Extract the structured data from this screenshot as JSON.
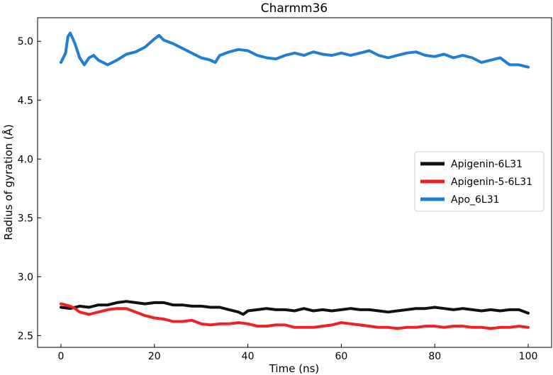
{
  "chart_data": {
    "type": "line",
    "title": "Charmm36",
    "xlabel": "Time (ns)",
    "ylabel": "Radius of gyration (Å)",
    "xlim": [
      -5,
      105
    ],
    "ylim": [
      2.4,
      5.2
    ],
    "xticks": [
      0,
      20,
      40,
      60,
      80,
      100
    ],
    "xtick_labels": [
      "0",
      "20",
      "40",
      "60",
      "80",
      "100"
    ],
    "yticks": [
      2.5,
      3.0,
      3.5,
      4.0,
      4.5,
      5.0
    ],
    "ytick_labels": [
      "2.5",
      "3.0",
      "3.5",
      "4.0",
      "4.5",
      "5.0"
    ],
    "grid": false,
    "legend_position": "right",
    "series": [
      {
        "name": "Apigenin-6L31",
        "color": "#111111",
        "x": [
          0,
          2,
          4,
          6,
          8,
          10,
          12,
          14,
          16,
          18,
          20,
          22,
          24,
          26,
          28,
          30,
          32,
          34,
          36,
          38,
          39,
          40,
          42,
          44,
          46,
          48,
          50,
          52,
          54,
          56,
          58,
          60,
          62,
          64,
          66,
          68,
          70,
          72,
          74,
          76,
          78,
          80,
          82,
          84,
          86,
          88,
          90,
          92,
          94,
          96,
          98,
          100
        ],
        "y": [
          2.74,
          2.73,
          2.75,
          2.74,
          2.76,
          2.76,
          2.78,
          2.79,
          2.78,
          2.77,
          2.78,
          2.78,
          2.76,
          2.76,
          2.75,
          2.75,
          2.74,
          2.74,
          2.72,
          2.7,
          2.68,
          2.71,
          2.72,
          2.73,
          2.72,
          2.72,
          2.71,
          2.73,
          2.71,
          2.72,
          2.71,
          2.72,
          2.73,
          2.72,
          2.72,
          2.71,
          2.7,
          2.71,
          2.72,
          2.73,
          2.73,
          2.74,
          2.73,
          2.72,
          2.73,
          2.72,
          2.71,
          2.72,
          2.71,
          2.72,
          2.72,
          2.69
        ]
      },
      {
        "name": "Apigenin-5-6L31",
        "color": "#ee2222",
        "x": [
          0,
          1,
          2,
          3,
          4,
          6,
          8,
          10,
          12,
          14,
          16,
          18,
          20,
          22,
          24,
          26,
          28,
          30,
          32,
          34,
          36,
          38,
          40,
          42,
          44,
          46,
          48,
          50,
          52,
          54,
          56,
          58,
          60,
          62,
          64,
          66,
          68,
          70,
          72,
          74,
          76,
          78,
          80,
          82,
          84,
          86,
          88,
          90,
          92,
          94,
          96,
          98,
          100
        ],
        "y": [
          2.77,
          2.76,
          2.75,
          2.73,
          2.7,
          2.68,
          2.7,
          2.72,
          2.73,
          2.73,
          2.7,
          2.67,
          2.65,
          2.64,
          2.62,
          2.62,
          2.63,
          2.6,
          2.59,
          2.6,
          2.6,
          2.61,
          2.6,
          2.58,
          2.58,
          2.59,
          2.59,
          2.57,
          2.57,
          2.57,
          2.58,
          2.59,
          2.61,
          2.6,
          2.59,
          2.58,
          2.57,
          2.57,
          2.56,
          2.57,
          2.57,
          2.58,
          2.58,
          2.57,
          2.58,
          2.58,
          2.57,
          2.57,
          2.56,
          2.57,
          2.57,
          2.58,
          2.57
        ]
      },
      {
        "name": "Apo_6L31",
        "color": "#1f7fd4",
        "x": [
          0,
          1,
          1.5,
          2,
          3,
          4,
          5,
          6,
          7,
          8,
          9,
          10,
          12,
          14,
          16,
          18,
          20,
          21,
          22,
          24,
          26,
          28,
          30,
          32,
          33,
          34,
          36,
          38,
          40,
          42,
          44,
          46,
          48,
          50,
          52,
          54,
          56,
          58,
          60,
          62,
          64,
          66,
          68,
          70,
          72,
          74,
          76,
          78,
          80,
          82,
          84,
          86,
          88,
          90,
          92,
          94,
          96,
          98,
          100
        ],
        "y": [
          4.82,
          4.9,
          5.04,
          5.07,
          4.98,
          4.86,
          4.8,
          4.86,
          4.88,
          4.84,
          4.82,
          4.8,
          4.84,
          4.89,
          4.91,
          4.95,
          5.02,
          5.05,
          5.01,
          4.98,
          4.94,
          4.9,
          4.86,
          4.84,
          4.82,
          4.88,
          4.91,
          4.93,
          4.92,
          4.88,
          4.86,
          4.85,
          4.88,
          4.9,
          4.88,
          4.91,
          4.89,
          4.88,
          4.9,
          4.88,
          4.9,
          4.92,
          4.88,
          4.86,
          4.88,
          4.9,
          4.91,
          4.88,
          4.87,
          4.89,
          4.86,
          4.88,
          4.86,
          4.82,
          4.84,
          4.86,
          4.8,
          4.8,
          4.78
        ]
      }
    ]
  }
}
